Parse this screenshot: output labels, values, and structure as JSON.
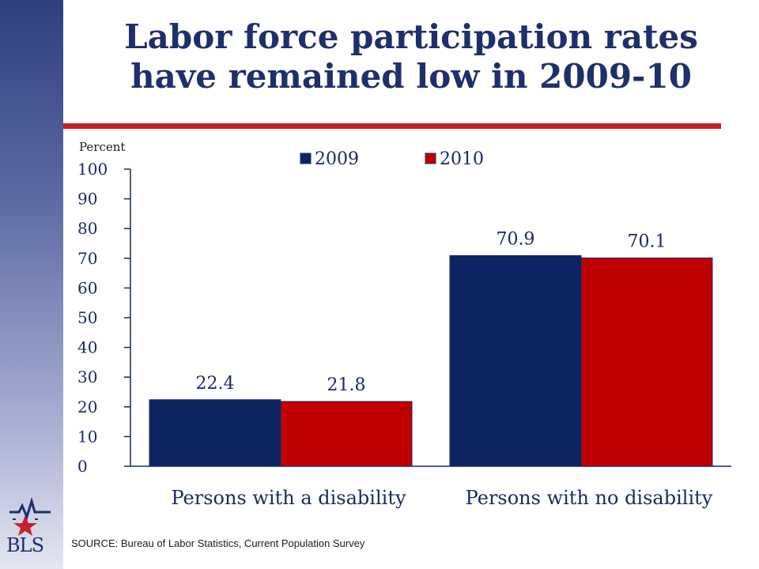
{
  "slide": {
    "title_line1": "Labor force participation rates",
    "title_line2": "have remained low in 2009-10",
    "source": "SOURCE:  Bureau of Labor Statistics, Current Population Survey",
    "logo_text": "BLS"
  },
  "colors": {
    "title": "#1f2f6b",
    "rule": "#c8202a",
    "series_2009": "#0d2463",
    "series_2010": "#c00000"
  },
  "chart_data": {
    "type": "bar",
    "title": "",
    "ylabel": "Percent",
    "xlabel": "",
    "ylim": [
      0,
      100
    ],
    "yticks": [
      0,
      10,
      20,
      30,
      40,
      50,
      60,
      70,
      80,
      90,
      100
    ],
    "categories": [
      "Persons with a disability",
      "Persons with no disability"
    ],
    "series": [
      {
        "name": "2009",
        "values": [
          22.4,
          70.9
        ],
        "color": "#0d2463"
      },
      {
        "name": "2010",
        "values": [
          21.8,
          70.1
        ],
        "color": "#c00000"
      }
    ],
    "legend_position": "top-center",
    "grid": false,
    "data_labels": true
  }
}
